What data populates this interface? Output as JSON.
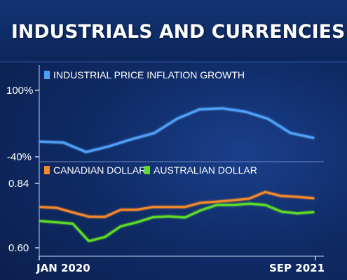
{
  "title": "INDUSTRIALS AND CURRENCIES",
  "colors": {
    "background": "#0f2b66",
    "inflation": "#4f9ff5",
    "cad": "#f5892a",
    "aud": "#5fdc28"
  },
  "chart_data": [
    {
      "type": "line",
      "legend_placement": "top-left",
      "series": [
        {
          "name": "INDUSTRIAL PRICE INFLATION GROWTH",
          "color": "#4f9ff5",
          "values": [
            -8,
            -10,
            -30,
            -18,
            -3,
            10,
            40,
            60,
            62,
            55,
            40,
            10,
            0
          ]
        }
      ],
      "y_tick_labels": [
        "100%",
        "-40%"
      ],
      "ylim": [
        -40,
        100
      ],
      "grid": false
    },
    {
      "type": "line",
      "legend_placement": "top-left",
      "series": [
        {
          "name": "CANADIAN DOLLAR",
          "color": "#f5892a",
          "values": [
            0.752,
            0.749,
            0.732,
            0.716,
            0.715,
            0.742,
            0.742,
            0.752,
            0.752,
            0.752,
            0.768,
            0.772,
            0.777,
            0.783,
            0.808,
            0.793,
            0.79,
            0.785
          ]
        },
        {
          "name": "AUSTRALIAN DOLLAR",
          "color": "#5fdc28",
          "values": [
            0.7,
            0.695,
            0.69,
            0.625,
            0.64,
            0.68,
            0.695,
            0.714,
            0.717,
            0.713,
            0.74,
            0.76,
            0.76,
            0.764,
            0.76,
            0.735,
            0.728,
            0.733
          ]
        }
      ],
      "y_tick_labels": [
        "0.84",
        "0.60"
      ],
      "ylim": [
        0.6,
        0.84
      ],
      "grid": false
    }
  ],
  "x_axis": {
    "start_label": "JAN 2020",
    "end_label": "SEP 2021"
  }
}
